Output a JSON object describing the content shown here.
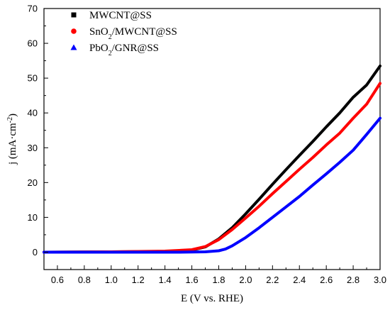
{
  "chart_data": {
    "type": "line",
    "xlabel_parts": [
      "E (V vs. RHE)"
    ],
    "ylabel_parts": [
      "j (mA·cm",
      "-2",
      ")"
    ],
    "xlim": [
      0.5,
      3.0
    ],
    "ylim": [
      -5,
      70
    ],
    "x_ticks": [
      0.6,
      0.8,
      1.0,
      1.2,
      1.4,
      1.6,
      1.8,
      2.0,
      2.2,
      2.4,
      2.6,
      2.8,
      3.0
    ],
    "x_tick_labels": [
      "0.6",
      "0.8",
      "1.0",
      "1.2",
      "1.4",
      "1.6",
      "1.8",
      "2.0",
      "2.2",
      "2.4",
      "2.6",
      "2.8",
      "3.0"
    ],
    "y_ticks": [
      0,
      10,
      20,
      30,
      40,
      50,
      60,
      70
    ],
    "y_tick_labels": [
      "0",
      "10",
      "20",
      "30",
      "40",
      "50",
      "60",
      "70"
    ],
    "legend_position": "top-left",
    "grid": false,
    "series": [
      {
        "name_parts": [
          "MWCNT@SS"
        ],
        "marker": "square",
        "color": "#000000",
        "x": [
          0.5,
          1.0,
          1.4,
          1.6,
          1.7,
          1.8,
          1.9,
          2.0,
          2.1,
          2.2,
          2.3,
          2.4,
          2.5,
          2.6,
          2.7,
          2.8,
          2.9,
          3.0
        ],
        "y": [
          0.0,
          0.1,
          0.2,
          0.6,
          1.5,
          3.8,
          7.0,
          11.0,
          15.2,
          19.5,
          23.7,
          27.8,
          31.8,
          36.0,
          40.0,
          44.5,
          48.0,
          53.5
        ]
      },
      {
        "name_parts": [
          "SnO",
          "2",
          "/MWCNT@SS"
        ],
        "marker": "circle",
        "color": "#ff0000",
        "x": [
          0.5,
          1.0,
          1.4,
          1.6,
          1.7,
          1.8,
          1.9,
          2.0,
          2.1,
          2.2,
          2.3,
          2.4,
          2.5,
          2.6,
          2.7,
          2.8,
          2.9,
          3.0
        ],
        "y": [
          0.0,
          0.1,
          0.3,
          0.7,
          1.6,
          3.6,
          6.5,
          9.8,
          13.2,
          16.8,
          20.3,
          23.8,
          27.2,
          30.8,
          34.2,
          38.5,
          42.5,
          48.5
        ]
      },
      {
        "name_parts": [
          "PbO",
          "2",
          "/GNR@SS"
        ],
        "marker": "triangle",
        "color": "#0000ff",
        "x": [
          0.5,
          1.0,
          1.5,
          1.7,
          1.8,
          1.85,
          1.9,
          2.0,
          2.1,
          2.2,
          2.3,
          2.4,
          2.5,
          2.6,
          2.7,
          2.8,
          2.9,
          3.0
        ],
        "y": [
          0.0,
          0.0,
          0.0,
          0.1,
          0.4,
          0.9,
          1.8,
          4.2,
          7.0,
          10.0,
          13.0,
          16.0,
          19.3,
          22.5,
          25.8,
          29.3,
          33.8,
          38.5
        ]
      }
    ]
  }
}
